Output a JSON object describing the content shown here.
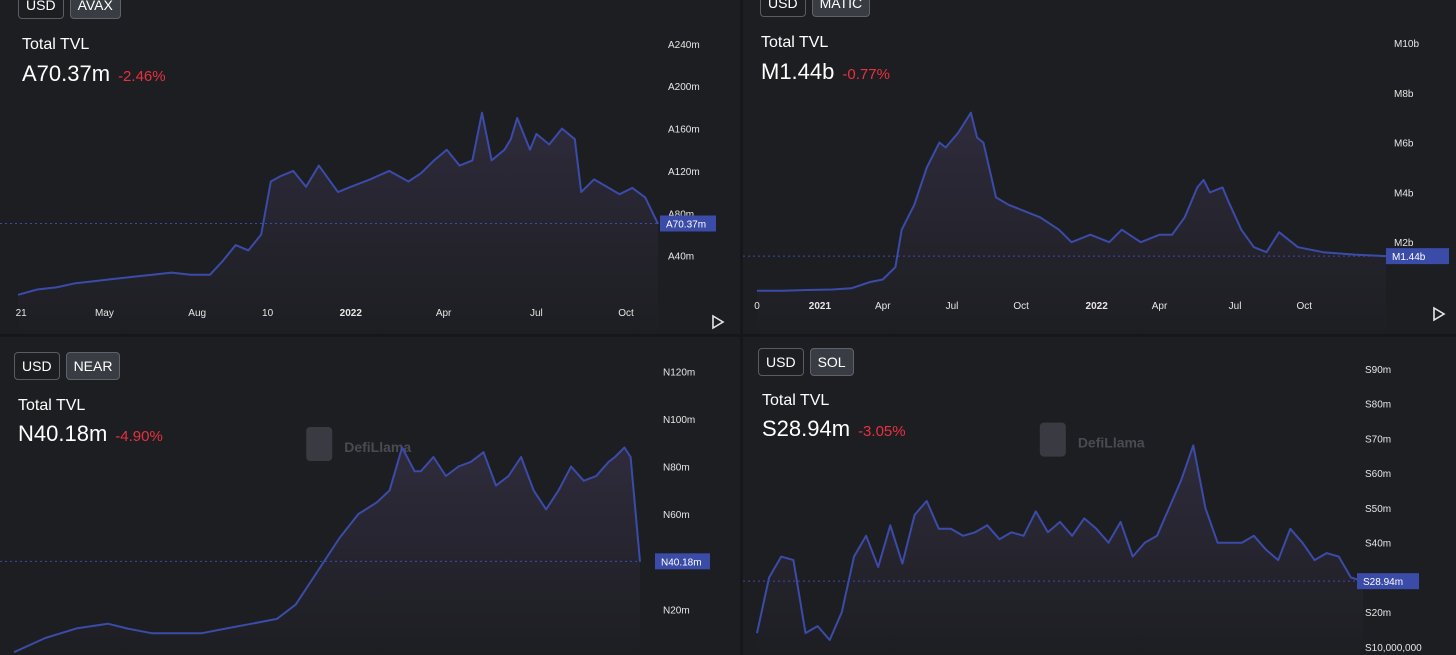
{
  "colors": {
    "background": "#1d1e22",
    "line": "#3b4ba8",
    "area_top": "#2f2b3c",
    "negative": "#e8313f",
    "price_tag": "#3b4ba8"
  },
  "watermark": "DefiLlama",
  "chart_data": [
    {
      "type": "area",
      "chain": "AVAX",
      "buttons": [
        "USD",
        "AVAX"
      ],
      "active_button": "AVAX",
      "metric_label": "Total TVL",
      "current_value": "A70.37m",
      "change": "-2.46%",
      "current_numeric": 70.37,
      "y_unit": "millions",
      "ylim": [
        0,
        255
      ],
      "y_ticks": [
        40,
        80,
        120,
        160,
        200,
        240
      ],
      "y_tick_labels": [
        "A40m",
        "A80m",
        "A120m",
        "A160m",
        "A200m",
        "A240m"
      ],
      "x_tick_labels": [
        "21",
        "May",
        "Aug",
        "10",
        "2022",
        "Apr",
        "Jul",
        "Oct"
      ],
      "x_tick_positions": [
        0.005,
        0.135,
        0.28,
        0.39,
        0.52,
        0.665,
        0.81,
        0.95
      ],
      "bold_ticks": [
        "2022"
      ],
      "x": [
        0,
        0.03,
        0.06,
        0.09,
        0.12,
        0.15,
        0.18,
        0.21,
        0.24,
        0.27,
        0.3,
        0.32,
        0.34,
        0.36,
        0.38,
        0.395,
        0.41,
        0.43,
        0.45,
        0.47,
        0.5,
        0.52,
        0.55,
        0.58,
        0.61,
        0.63,
        0.65,
        0.67,
        0.69,
        0.71,
        0.725,
        0.74,
        0.76,
        0.77,
        0.78,
        0.8,
        0.81,
        0.83,
        0.85,
        0.87,
        0.88,
        0.9,
        0.92,
        0.94,
        0.96,
        0.98,
        1.0
      ],
      "y": [
        3,
        8,
        10,
        14,
        16,
        18,
        20,
        22,
        24,
        22,
        22,
        35,
        50,
        45,
        60,
        110,
        115,
        120,
        105,
        125,
        100,
        105,
        112,
        120,
        110,
        118,
        130,
        140,
        125,
        130,
        175,
        130,
        140,
        150,
        170,
        140,
        155,
        145,
        160,
        150,
        100,
        112,
        105,
        98,
        104,
        95,
        70
      ],
      "ref_line": 70.37
    },
    {
      "type": "area",
      "chain": "MATIC",
      "buttons": [
        "USD",
        "MATIC"
      ],
      "active_button": "MATIC",
      "metric_label": "Total TVL",
      "current_value": "M1.44b",
      "change": "-0.77%",
      "current_numeric": 1.44,
      "y_unit": "billions",
      "ylim": [
        0,
        10.6
      ],
      "y_ticks": [
        2,
        4,
        6,
        8,
        10
      ],
      "y_tick_labels": [
        "M2b",
        "M4b",
        "M6b",
        "M8b",
        "M10b"
      ],
      "x_tick_labels": [
        "0",
        "2021",
        "Apr",
        "Jul",
        "Oct",
        "2022",
        "Apr",
        "Jul",
        "Oct"
      ],
      "x_tick_positions": [
        0.0,
        0.1,
        0.2,
        0.31,
        0.42,
        0.54,
        0.64,
        0.76,
        0.87
      ],
      "bold_ticks": [
        "2021",
        "2022"
      ],
      "x": [
        0,
        0.04,
        0.08,
        0.12,
        0.15,
        0.18,
        0.2,
        0.22,
        0.23,
        0.25,
        0.27,
        0.29,
        0.3,
        0.32,
        0.34,
        0.35,
        0.36,
        0.38,
        0.4,
        0.42,
        0.45,
        0.48,
        0.5,
        0.53,
        0.56,
        0.58,
        0.61,
        0.64,
        0.66,
        0.68,
        0.7,
        0.71,
        0.72,
        0.74,
        0.75,
        0.77,
        0.79,
        0.81,
        0.83,
        0.86,
        0.9,
        0.95,
        1.0
      ],
      "y": [
        0.05,
        0.05,
        0.08,
        0.1,
        0.15,
        0.4,
        0.5,
        1.0,
        2.5,
        3.5,
        5.0,
        6.0,
        5.8,
        6.4,
        7.2,
        6.2,
        6.0,
        3.8,
        3.5,
        3.3,
        3.0,
        2.5,
        2.0,
        2.3,
        2.0,
        2.5,
        2.0,
        2.3,
        2.3,
        3.0,
        4.2,
        4.5,
        4.0,
        4.2,
        3.6,
        2.5,
        1.8,
        1.6,
        2.4,
        1.8,
        1.6,
        1.5,
        1.44
      ],
      "ref_line": 1.44
    },
    {
      "type": "area",
      "chain": "NEAR",
      "buttons": [
        "USD",
        "NEAR"
      ],
      "active_button": "NEAR",
      "metric_label": "Total TVL",
      "current_value": "N40.18m",
      "change": "-4.90%",
      "current_numeric": 40.18,
      "y_unit": "millions",
      "ylim": [
        0,
        126
      ],
      "y_ticks": [
        20,
        40,
        60,
        80,
        100,
        120
      ],
      "y_tick_labels": [
        "N20m",
        "N40m",
        "N60m",
        "N80m",
        "N100m",
        "N120m"
      ],
      "x_tick_labels": [],
      "x_tick_positions": [],
      "bold_ticks": [],
      "x": [
        0,
        0.05,
        0.1,
        0.15,
        0.18,
        0.22,
        0.26,
        0.3,
        0.34,
        0.38,
        0.42,
        0.45,
        0.48,
        0.5,
        0.52,
        0.55,
        0.58,
        0.6,
        0.62,
        0.64,
        0.65,
        0.67,
        0.69,
        0.71,
        0.73,
        0.75,
        0.77,
        0.79,
        0.81,
        0.83,
        0.85,
        0.87,
        0.89,
        0.91,
        0.93,
        0.95,
        0.96,
        0.975,
        0.985,
        1.0
      ],
      "y": [
        2,
        8,
        12,
        14,
        12,
        10,
        10,
        10,
        12,
        14,
        16,
        22,
        34,
        42,
        50,
        60,
        65,
        70,
        88,
        78,
        78,
        84,
        76,
        80,
        82,
        86,
        72,
        76,
        84,
        70,
        62,
        70,
        80,
        74,
        76,
        82,
        84,
        88,
        84,
        40
      ],
      "ref_line": 40.18
    },
    {
      "type": "area",
      "chain": "SOL",
      "buttons": [
        "USD",
        "SOL"
      ],
      "active_button": "SOL",
      "metric_label": "Total TVL",
      "current_value": "S28.94m",
      "change": "-3.05%",
      "current_numeric": 28.94,
      "y_unit": "millions",
      "ylim": [
        10,
        94
      ],
      "y_ticks": [
        10,
        20,
        30,
        40,
        50,
        60,
        70,
        80,
        90
      ],
      "y_tick_labels": [
        "S10,000,000",
        "S20m",
        "",
        "S40m",
        "S50m",
        "S60m",
        "S70m",
        "S80m",
        "S90m"
      ],
      "x_tick_labels": [],
      "x_tick_positions": [],
      "bold_ticks": [],
      "x": [
        0,
        0.02,
        0.04,
        0.06,
        0.08,
        0.1,
        0.12,
        0.14,
        0.16,
        0.18,
        0.2,
        0.22,
        0.24,
        0.26,
        0.28,
        0.3,
        0.32,
        0.34,
        0.36,
        0.38,
        0.4,
        0.42,
        0.44,
        0.46,
        0.48,
        0.5,
        0.52,
        0.54,
        0.56,
        0.58,
        0.6,
        0.62,
        0.64,
        0.66,
        0.68,
        0.7,
        0.72,
        0.74,
        0.76,
        0.78,
        0.8,
        0.82,
        0.84,
        0.86,
        0.88,
        0.9,
        0.92,
        0.94,
        0.96,
        0.98,
        1.0
      ],
      "y": [
        14,
        30,
        36,
        35,
        14,
        16,
        12,
        20,
        36,
        42,
        33,
        45,
        34,
        48,
        52,
        44,
        44,
        42,
        43,
        45,
        41,
        43,
        42,
        49,
        43,
        46,
        42,
        47,
        44,
        40,
        46,
        36,
        40,
        42,
        50,
        58,
        68,
        50,
        40,
        40,
        40,
        42,
        38,
        35,
        44,
        40,
        35,
        37,
        36,
        30,
        28.94
      ],
      "ref_line": 28.94
    }
  ]
}
